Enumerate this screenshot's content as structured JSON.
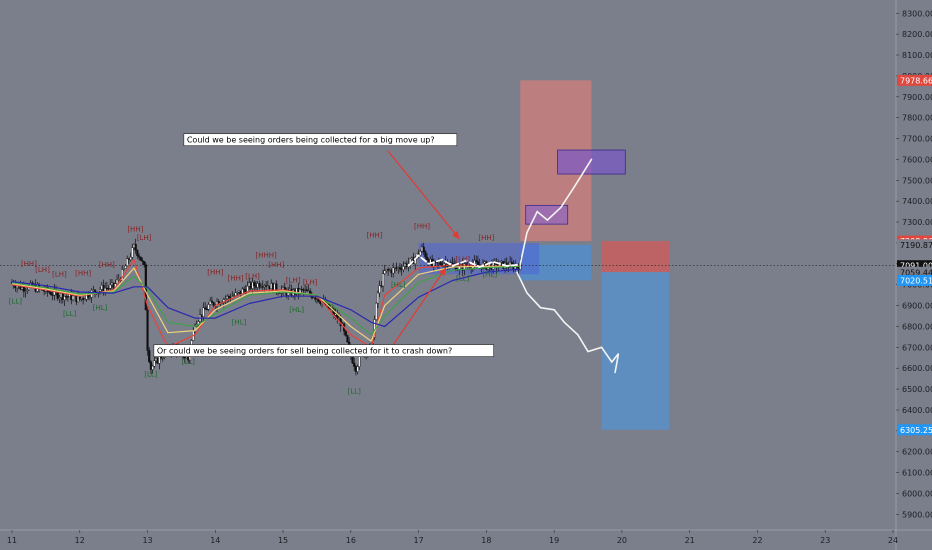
{
  "chart_data": {
    "type": "line",
    "title": "",
    "xlabel": "",
    "ylabel": "",
    "x_ticks": [
      "11",
      "12",
      "13",
      "14",
      "15",
      "16",
      "17",
      "18",
      "19",
      "20",
      "21",
      "22",
      "23",
      "24"
    ],
    "x_range": [
      11,
      24
    ],
    "ylim": [
      5830,
      8330
    ],
    "y_ticks": [
      5900,
      6000,
      6100,
      6200,
      6300,
      6400,
      6500,
      6600,
      6700,
      6800,
      6900,
      7000,
      7100,
      7200,
      7300,
      7400,
      7500,
      7600,
      7700,
      7800,
      7900,
      8000,
      8100,
      8200,
      8300
    ],
    "y_tick_labels": [
      "5900.00",
      "6000.00",
      "6100.00",
      "6200.00",
      "6300.00",
      "6400.00",
      "6500.00",
      "6600.00",
      "6700.00",
      "6800.00",
      "6900.00",
      "7000.00",
      "7100.00",
      "7200.00",
      "7300.00",
      "7400.00",
      "7500.00",
      "7600.00",
      "7700.00",
      "7800.00",
      "7900.00",
      "8000.00",
      "8100.00",
      "8200.00",
      "8300.00"
    ],
    "price_tags": [
      {
        "label": "7978.66",
        "value": 7978.66,
        "color": "#e0483f"
      },
      {
        "label": "7208.86",
        "value": 7208.86,
        "color": "#e0483f"
      },
      {
        "label": "7190.87",
        "value": 7190.87,
        "color": "#7b7e8b"
      },
      {
        "label": "7091.00",
        "value": 7091.0,
        "color": "#111111"
      },
      {
        "label": "04:00",
        "value": 7050.0,
        "color": "#111111"
      },
      {
        "label": "7059.44",
        "value": 7059.44,
        "color": "#7b7e8b"
      },
      {
        "label": "7020.51",
        "value": 7020.51,
        "color": "#2196f3"
      },
      {
        "label": "6305.25",
        "value": 6305.25,
        "color": "#2196f3"
      }
    ],
    "current_price": 7091.0,
    "price_series": [
      [
        11.0,
        7010
      ],
      [
        11.15,
        6985
      ],
      [
        11.3,
        6990
      ],
      [
        11.5,
        6970
      ],
      [
        11.7,
        6950
      ],
      [
        11.9,
        6940
      ],
      [
        12.0,
        6930
      ],
      [
        12.15,
        6960
      ],
      [
        12.3,
        6980
      ],
      [
        12.5,
        6990
      ],
      [
        12.62,
        7050
      ],
      [
        12.72,
        7120
      ],
      [
        12.8,
        7180
      ],
      [
        12.88,
        7140
      ],
      [
        12.95,
        7080
      ],
      [
        13.0,
        6700
      ],
      [
        13.05,
        6600
      ],
      [
        13.2,
        6660
      ],
      [
        13.4,
        6700
      ],
      [
        13.6,
        6640
      ],
      [
        13.7,
        6820
      ],
      [
        13.9,
        6900
      ],
      [
        14.1,
        6930
      ],
      [
        14.3,
        6950
      ],
      [
        14.5,
        6990
      ],
      [
        14.7,
        7010
      ],
      [
        14.9,
        6980
      ],
      [
        15.1,
        6960
      ],
      [
        15.3,
        6970
      ],
      [
        15.5,
        6940
      ],
      [
        15.7,
        6880
      ],
      [
        15.85,
        6820
      ],
      [
        16.0,
        6660
      ],
      [
        16.08,
        6600
      ],
      [
        16.15,
        6680
      ],
      [
        16.3,
        6700
      ],
      [
        16.4,
        6960
      ],
      [
        16.5,
        7060
      ],
      [
        16.7,
        7080
      ],
      [
        16.9,
        7110
      ],
      [
        17.05,
        7170
      ],
      [
        17.2,
        7090
      ],
      [
        17.4,
        7110
      ],
      [
        17.6,
        7080
      ],
      [
        17.8,
        7100
      ],
      [
        18.0,
        7090
      ],
      [
        18.2,
        7095
      ],
      [
        18.4,
        7090
      ],
      [
        18.5,
        7091
      ]
    ],
    "series": [
      {
        "color": "#e8453c",
        "values": [
          [
            11.0,
            7000
          ],
          [
            11.5,
            6975
          ],
          [
            12.0,
            6945
          ],
          [
            12.5,
            6975
          ],
          [
            12.8,
            7120
          ],
          [
            13.0,
            6900
          ],
          [
            13.3,
            6700
          ],
          [
            13.7,
            6760
          ],
          [
            14.0,
            6900
          ],
          [
            14.5,
            6970
          ],
          [
            15.0,
            6975
          ],
          [
            15.5,
            6945
          ],
          [
            16.0,
            6760
          ],
          [
            16.3,
            6700
          ],
          [
            16.5,
            6950
          ],
          [
            17.0,
            7080
          ],
          [
            17.5,
            7095
          ],
          [
            18.0,
            7090
          ],
          [
            18.5,
            7091
          ]
        ]
      },
      {
        "color": "#f0d37a",
        "values": [
          [
            11.0,
            7005
          ],
          [
            11.5,
            6980
          ],
          [
            12.0,
            6950
          ],
          [
            12.5,
            6970
          ],
          [
            12.8,
            7080
          ],
          [
            13.0,
            6950
          ],
          [
            13.3,
            6770
          ],
          [
            13.7,
            6780
          ],
          [
            14.0,
            6880
          ],
          [
            14.5,
            6960
          ],
          [
            15.0,
            6970
          ],
          [
            15.5,
            6950
          ],
          [
            16.0,
            6800
          ],
          [
            16.3,
            6730
          ],
          [
            16.5,
            6900
          ],
          [
            17.0,
            7050
          ],
          [
            17.5,
            7085
          ],
          [
            18.0,
            7088
          ],
          [
            18.5,
            7090
          ]
        ]
      },
      {
        "color": "#3fa14a",
        "values": [
          [
            11.0,
            7010
          ],
          [
            11.5,
            6985
          ],
          [
            12.0,
            6955
          ],
          [
            12.5,
            6965
          ],
          [
            12.8,
            7040
          ],
          [
            13.0,
            6980
          ],
          [
            13.3,
            6820
          ],
          [
            13.7,
            6800
          ],
          [
            14.0,
            6860
          ],
          [
            14.5,
            6950
          ],
          [
            15.0,
            6965
          ],
          [
            15.5,
            6950
          ],
          [
            16.0,
            6840
          ],
          [
            16.3,
            6760
          ],
          [
            16.5,
            6850
          ],
          [
            17.0,
            7010
          ],
          [
            17.5,
            7070
          ],
          [
            18.0,
            7082
          ],
          [
            18.5,
            7088
          ]
        ]
      },
      {
        "color": "#2929b0",
        "values": [
          [
            11.0,
            7015
          ],
          [
            11.5,
            6995
          ],
          [
            12.0,
            6965
          ],
          [
            12.5,
            6960
          ],
          [
            12.8,
            6990
          ],
          [
            13.0,
            6990
          ],
          [
            13.3,
            6890
          ],
          [
            13.7,
            6840
          ],
          [
            14.0,
            6840
          ],
          [
            14.5,
            6910
          ],
          [
            15.0,
            6945
          ],
          [
            15.5,
            6945
          ],
          [
            16.0,
            6880
          ],
          [
            16.3,
            6820
          ],
          [
            16.5,
            6800
          ],
          [
            17.0,
            6940
          ],
          [
            17.5,
            7020
          ],
          [
            18.0,
            7060
          ],
          [
            18.5,
            7075
          ]
        ]
      }
    ],
    "pivot_labels": [
      {
        "text": "[HH]",
        "x": 12.82,
        "y": 7255,
        "kind": "high"
      },
      {
        "text": "[LH]",
        "x": 12.95,
        "y": 7215,
        "kind": "high"
      },
      {
        "text": "[HH]",
        "x": 11.25,
        "y": 7090,
        "kind": "high"
      },
      {
        "text": "[LH]",
        "x": 11.45,
        "y": 7060,
        "kind": "high"
      },
      {
        "text": "[LH]",
        "x": 11.7,
        "y": 7040,
        "kind": "high"
      },
      {
        "text": "[HH]",
        "x": 12.05,
        "y": 7045,
        "kind": "high"
      },
      {
        "text": "[HH]",
        "x": 12.4,
        "y": 7085,
        "kind": "high"
      },
      {
        "text": "[HH]",
        "x": 14.0,
        "y": 7050,
        "kind": "high"
      },
      {
        "text": "[HH]",
        "x": 14.3,
        "y": 7020,
        "kind": "high"
      },
      {
        "text": "[LH]",
        "x": 14.55,
        "y": 7030,
        "kind": "high"
      },
      {
        "text": "[HHH]",
        "x": 14.75,
        "y": 7130,
        "kind": "high"
      },
      {
        "text": "[HH]",
        "x": 14.9,
        "y": 7085,
        "kind": "high"
      },
      {
        "text": "[LH]",
        "x": 15.15,
        "y": 7010,
        "kind": "high"
      },
      {
        "text": "[LH]",
        "x": 15.4,
        "y": 7000,
        "kind": "high"
      },
      {
        "text": "[HH]",
        "x": 16.35,
        "y": 7225,
        "kind": "high"
      },
      {
        "text": "[HH]",
        "x": 17.05,
        "y": 7270,
        "kind": "high"
      },
      {
        "text": "[LH]",
        "x": 17.65,
        "y": 7110,
        "kind": "high"
      },
      {
        "text": "[HH]",
        "x": 18.0,
        "y": 7215,
        "kind": "high"
      },
      {
        "text": "[LL]",
        "x": 11.05,
        "y": 6910,
        "kind": "low"
      },
      {
        "text": "[LL]",
        "x": 11.85,
        "y": 6850,
        "kind": "low"
      },
      {
        "text": "[HL]",
        "x": 12.3,
        "y": 6880,
        "kind": "low"
      },
      {
        "text": "[LL]",
        "x": 13.05,
        "y": 6560,
        "kind": "low"
      },
      {
        "text": "[LL]",
        "x": 13.6,
        "y": 6620,
        "kind": "low"
      },
      {
        "text": "[HL]",
        "x": 14.35,
        "y": 6810,
        "kind": "low"
      },
      {
        "text": "[HL]",
        "x": 15.2,
        "y": 6870,
        "kind": "low"
      },
      {
        "text": "[LL]",
        "x": 16.05,
        "y": 6480,
        "kind": "low"
      },
      {
        "text": "[HL]",
        "x": 16.7,
        "y": 6990,
        "kind": "low"
      },
      {
        "text": "[LL]",
        "x": 17.65,
        "y": 7020,
        "kind": "low"
      },
      {
        "text": "[HL]",
        "x": 18.05,
        "y": 7040,
        "kind": "low"
      }
    ],
    "zones": [
      {
        "x0": 18.5,
        "x1": 19.55,
        "y0": 7208.86,
        "y1": 7978.66,
        "color": "#d07e7e",
        "opacity": 0.78
      },
      {
        "x0": 18.5,
        "x1": 19.55,
        "y0": 7020.51,
        "y1": 7190.87,
        "color": "#4f8fd0",
        "opacity": 0.8
      },
      {
        "x0": 17.0,
        "x1": 18.78,
        "y0": 7050,
        "y1": 7200,
        "color": "#4f66d8",
        "opacity": 0.55
      },
      {
        "x0": 19.05,
        "x1": 20.05,
        "y0": 7530,
        "y1": 7645,
        "color": "#7b58c8",
        "opacity": 0.7
      },
      {
        "x0": 18.58,
        "x1": 19.2,
        "y0": 7290,
        "y1": 7380,
        "color": "#9066c0",
        "opacity": 0.7
      },
      {
        "x0": 19.7,
        "x1": 20.7,
        "y0": 7060,
        "y1": 7208.86,
        "color": "#c56060",
        "opacity": 0.9
      },
      {
        "x0": 19.7,
        "x1": 20.7,
        "y0": 6305.25,
        "y1": 7060,
        "color": "#5b8fc4",
        "opacity": 0.92
      }
    ],
    "projection_up": [
      [
        18.5,
        7100
      ],
      [
        18.6,
        7250
      ],
      [
        18.75,
        7350
      ],
      [
        18.9,
        7310
      ],
      [
        19.1,
        7370
      ],
      [
        19.3,
        7470
      ],
      [
        19.55,
        7600
      ]
    ],
    "projection_down": [
      [
        18.45,
        7060
      ],
      [
        18.6,
        6960
      ],
      [
        18.8,
        6890
      ],
      [
        19.0,
        6880
      ],
      [
        19.15,
        6820
      ],
      [
        19.35,
        6760
      ],
      [
        19.5,
        6680
      ],
      [
        19.7,
        6700
      ],
      [
        19.85,
        6630
      ],
      [
        19.95,
        6670
      ],
      [
        19.9,
        6580
      ]
    ],
    "squiggle": [
      [
        16.85,
        7090
      ],
      [
        17.0,
        7140
      ],
      [
        17.15,
        7100
      ],
      [
        17.35,
        7120
      ],
      [
        17.5,
        7090
      ],
      [
        17.7,
        7115
      ],
      [
        17.9,
        7085
      ],
      [
        18.1,
        7110
      ],
      [
        18.3,
        7090
      ],
      [
        18.45,
        7095
      ]
    ],
    "annotations": [
      {
        "text": "Could we be seeing orders being collected for a big move up?",
        "x": 15.55,
        "y": 7680,
        "arrow_from": [
          16.55,
          7640
        ],
        "arrow_to": [
          17.6,
          7220
        ]
      },
      {
        "text": "Or could we be seeing orders for sell being collected for it to crash down?",
        "x": 15.6,
        "y": 6670,
        "arrow_from": [
          16.6,
          6700
        ],
        "arrow_to": [
          17.4,
          7080
        ]
      }
    ]
  }
}
